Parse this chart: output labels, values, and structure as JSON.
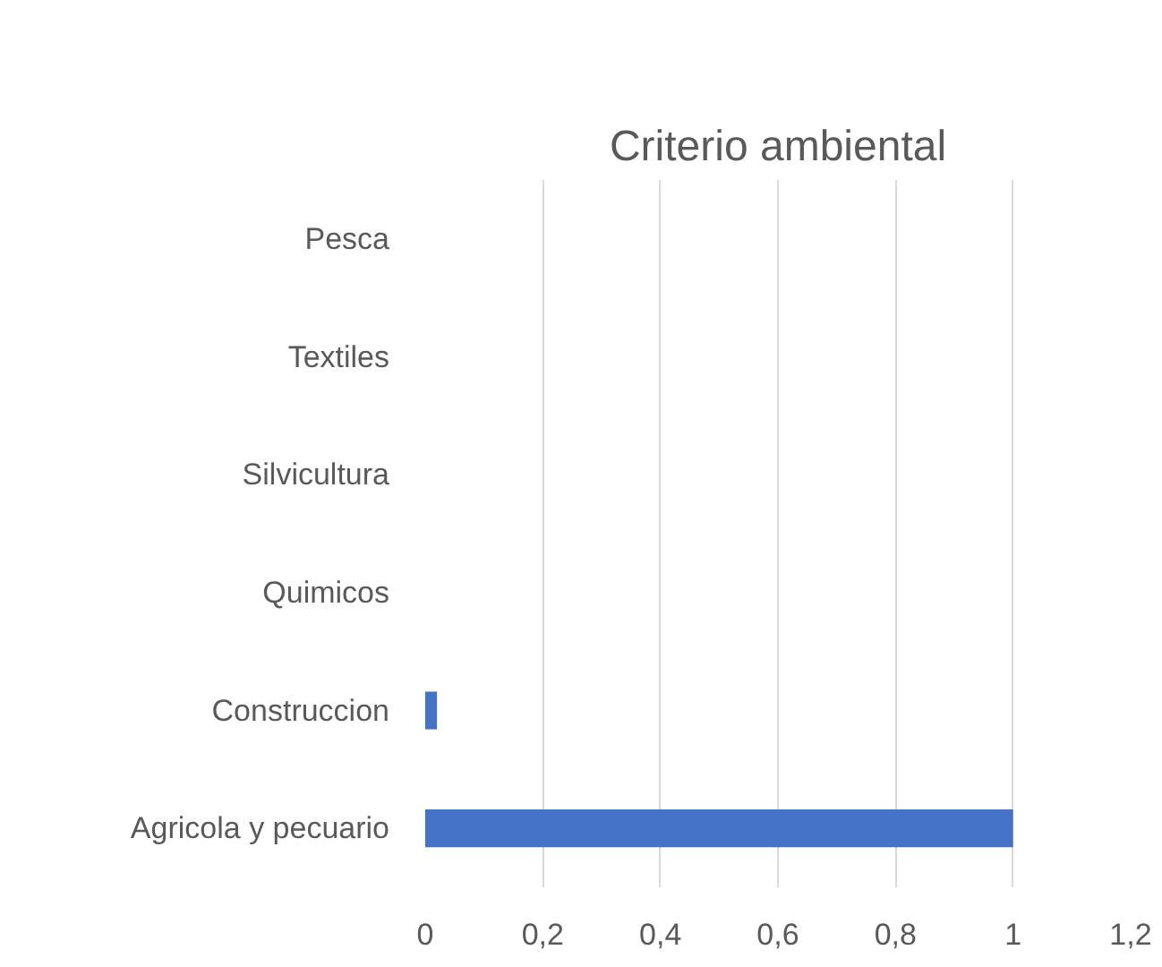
{
  "chart_data": {
    "type": "bar",
    "orientation": "horizontal",
    "title": "Criterio ambiental",
    "categories": [
      "Pesca",
      "Textiles",
      "Silvicultura",
      "Quimicos",
      "Construccion",
      "Agricola y pecuario"
    ],
    "values": [
      0,
      0,
      0,
      0,
      0.02,
      1
    ],
    "color": "#4472c4",
    "xlim": [
      0,
      1.2
    ],
    "xticks": [
      0,
      {
        "value": 0.2,
        "label": "0,2"
      },
      {
        "value": 0.4,
        "label": "0,4"
      },
      {
        "value": 0.6,
        "label": "0,6"
      },
      {
        "value": 0.8,
        "label": "0,8"
      },
      1,
      {
        "value": 1.2,
        "label": "1,2"
      }
    ],
    "grid": "x"
  }
}
